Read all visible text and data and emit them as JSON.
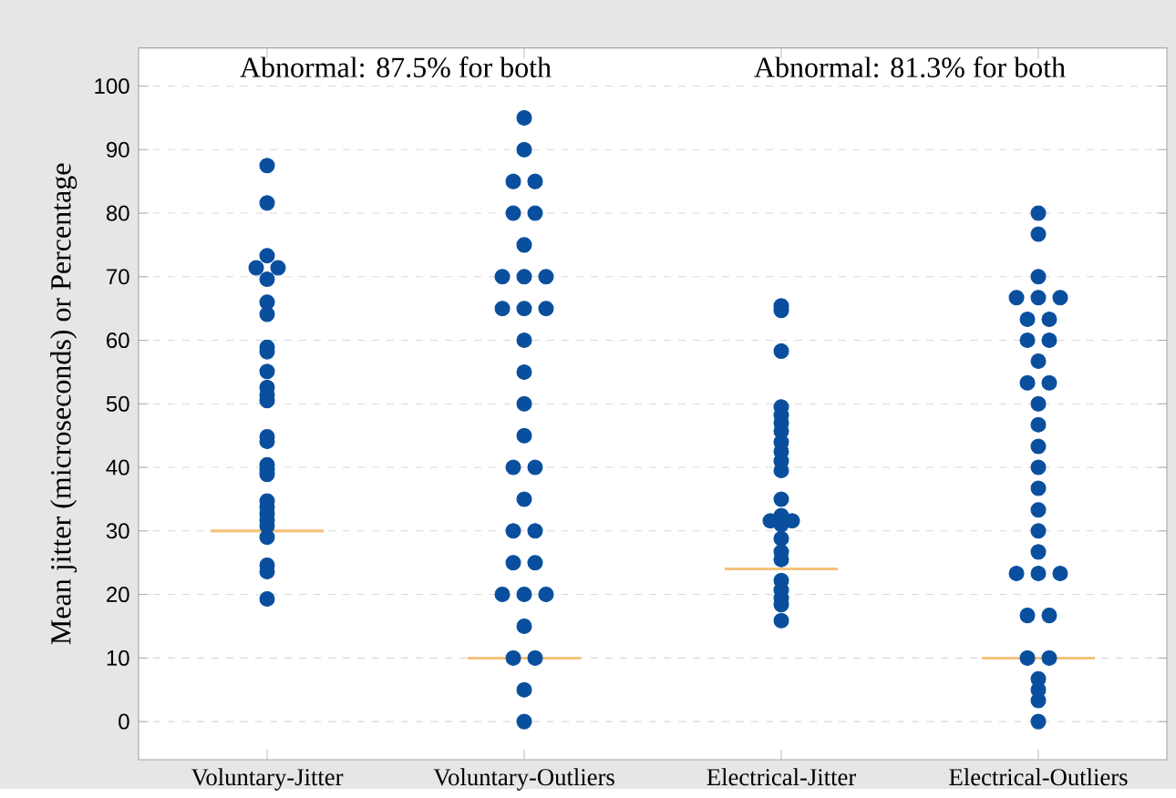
{
  "chart_data": {
    "type": "scatter",
    "categories": [
      "Voluntary-Jitter",
      "Voluntary-Outliers",
      "Electrical-Jitter",
      "Electrical-Outliers"
    ],
    "ylabel": "Mean jitter (microseconds) or Percentage",
    "annotations": [
      "Abnormal: 87.5% for both",
      "Abnormal: 81.3% for both"
    ],
    "ylim": [
      -6,
      106
    ],
    "yticks": [
      0,
      10,
      20,
      30,
      40,
      50,
      60,
      70,
      80,
      90,
      100
    ],
    "grid": "y",
    "legend": false,
    "series": [
      {
        "type": "scatter",
        "marker": "circle",
        "color": "#0a4f9e",
        "x": [
          "Voluntary-Jitter",
          "Voluntary-Jitter",
          "Voluntary-Jitter",
          "Voluntary-Jitter",
          "Voluntary-Jitter",
          "Voluntary-Jitter",
          "Voluntary-Jitter",
          "Voluntary-Jitter",
          "Voluntary-Jitter",
          "Voluntary-Jitter",
          "Voluntary-Jitter",
          "Voluntary-Jitter",
          "Voluntary-Jitter",
          "Voluntary-Jitter",
          "Voluntary-Jitter",
          "Voluntary-Jitter",
          "Voluntary-Jitter",
          "Voluntary-Jitter",
          "Voluntary-Jitter",
          "Voluntary-Jitter",
          "Voluntary-Jitter",
          "Voluntary-Jitter",
          "Voluntary-Jitter",
          "Voluntary-Jitter",
          "Voluntary-Jitter",
          "Voluntary-Jitter",
          "Voluntary-Jitter",
          "Voluntary-Jitter",
          "Voluntary-Outliers",
          "Voluntary-Outliers",
          "Voluntary-Outliers",
          "Voluntary-Outliers",
          "Voluntary-Outliers",
          "Voluntary-Outliers",
          "Voluntary-Outliers",
          "Voluntary-Outliers",
          "Voluntary-Outliers",
          "Voluntary-Outliers",
          "Voluntary-Outliers",
          "Voluntary-Outliers",
          "Voluntary-Outliers",
          "Voluntary-Outliers",
          "Voluntary-Outliers",
          "Voluntary-Outliers",
          "Voluntary-Outliers",
          "Voluntary-Outliers",
          "Voluntary-Outliers",
          "Voluntary-Outliers",
          "Voluntary-Outliers",
          "Voluntary-Outliers",
          "Voluntary-Outliers",
          "Voluntary-Outliers",
          "Voluntary-Outliers",
          "Voluntary-Outliers",
          "Voluntary-Outliers",
          "Voluntary-Outliers",
          "Voluntary-Outliers",
          "Voluntary-Outliers",
          "Voluntary-Outliers",
          "Voluntary-Outliers",
          "Electrical-Jitter",
          "Electrical-Jitter",
          "Electrical-Jitter",
          "Electrical-Jitter",
          "Electrical-Jitter",
          "Electrical-Jitter",
          "Electrical-Jitter",
          "Electrical-Jitter",
          "Electrical-Jitter",
          "Electrical-Jitter",
          "Electrical-Jitter",
          "Electrical-Jitter",
          "Electrical-Jitter",
          "Electrical-Jitter",
          "Electrical-Jitter",
          "Electrical-Jitter",
          "Electrical-Jitter",
          "Electrical-Jitter",
          "Electrical-Jitter",
          "Electrical-Jitter",
          "Electrical-Jitter",
          "Electrical-Jitter",
          "Electrical-Jitter",
          "Electrical-Jitter",
          "Electrical-Outliers",
          "Electrical-Outliers",
          "Electrical-Outliers",
          "Electrical-Outliers",
          "Electrical-Outliers",
          "Electrical-Outliers",
          "Electrical-Outliers",
          "Electrical-Outliers",
          "Electrical-Outliers",
          "Electrical-Outliers",
          "Electrical-Outliers",
          "Electrical-Outliers",
          "Electrical-Outliers",
          "Electrical-Outliers",
          "Electrical-Outliers",
          "Electrical-Outliers",
          "Electrical-Outliers",
          "Electrical-Outliers",
          "Electrical-Outliers",
          "Electrical-Outliers",
          "Electrical-Outliers",
          "Electrical-Outliers",
          "Electrical-Outliers",
          "Electrical-Outliers",
          "Electrical-Outliers",
          "Electrical-Outliers",
          "Electrical-Outliers",
          "Electrical-Outliers",
          "Electrical-Outliers",
          "Electrical-Outliers",
          "Electrical-Outliers",
          "Electrical-Outliers"
        ],
        "values": [
          87.5,
          81.6,
          73.3,
          71.4,
          71.4,
          69.6,
          66,
          64.1,
          58.9,
          58.2,
          55.1,
          52.6,
          51.4,
          50.5,
          44.8,
          44.1,
          40.4,
          39.6,
          38.9,
          34.7,
          33.7,
          32.7,
          31.7,
          30.8,
          29,
          24.6,
          23.6,
          19.3,
          95,
          90,
          85,
          85,
          80,
          80,
          75,
          70,
          70,
          70,
          65,
          65,
          65,
          60,
          55,
          50,
          45,
          40,
          40,
          35,
          30,
          30,
          25,
          25,
          20,
          20,
          20,
          15,
          10,
          10,
          5,
          0,
          65.4,
          64.7,
          58.3,
          49.5,
          48.2,
          47,
          45.7,
          44,
          42.5,
          41,
          39.5,
          35,
          32.4,
          31.6,
          31.6,
          31,
          28.8,
          26.7,
          25.5,
          22.2,
          20.7,
          19.4,
          18.4,
          15.9,
          80,
          76.7,
          70,
          66.7,
          66.7,
          66.7,
          63.3,
          63.3,
          60,
          60,
          56.7,
          53.3,
          53.3,
          50,
          46.7,
          43.3,
          40,
          36.7,
          33.3,
          30,
          26.7,
          23.3,
          23.3,
          23.3,
          16.7,
          16.7,
          10,
          10,
          6.7,
          5,
          3.3,
          0
        ]
      },
      {
        "type": "box",
        "color": "#f5c27a",
        "boxes": [
          {
            "low": 30,
            "q1": 30,
            "median": 30,
            "q3": 30,
            "high": 30
          },
          {
            "low": 10,
            "q1": 10,
            "median": 10,
            "q3": 10,
            "high": 10
          },
          {
            "low": 24,
            "q1": 24,
            "median": 24,
            "q3": 24,
            "high": 24
          },
          {
            "low": 10,
            "q1": 10,
            "median": 10,
            "q3": 10,
            "high": 10
          }
        ]
      }
    ]
  }
}
